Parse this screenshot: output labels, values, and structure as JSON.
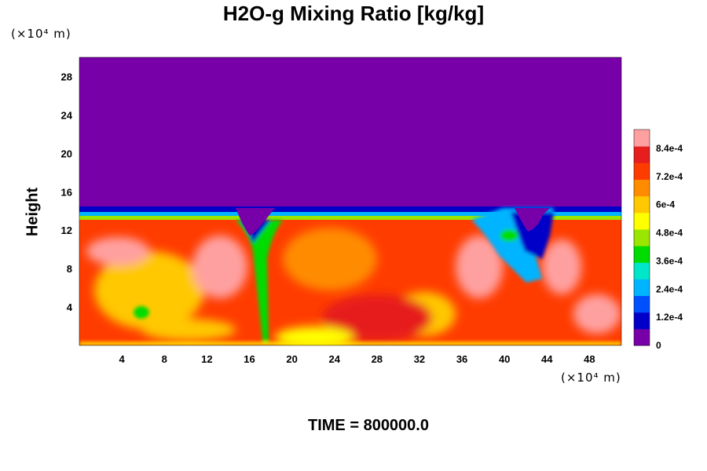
{
  "chart_data": {
    "type": "heatmap",
    "title": "H2O-g Mixing Ratio [kg/kg]",
    "ylabel": "Height",
    "y_unit": "(×10⁴ m)",
    "x_unit": "(×10⁴ m)",
    "x_ticks": [
      4,
      8,
      12,
      16,
      20,
      24,
      28,
      32,
      36,
      40,
      44,
      48
    ],
    "y_ticks": [
      4,
      8,
      12,
      16,
      20,
      24,
      28
    ],
    "xlim": [
      0,
      51
    ],
    "ylim": [
      0,
      30
    ],
    "colorbar": {
      "range": [
        0,
        0.00092
      ],
      "tick_labels": [
        "0",
        "1.2e-4",
        "2.4e-4",
        "3.6e-4",
        "4.8e-4",
        "6e-4",
        "7.2e-4",
        "8.4e-4"
      ],
      "colors": [
        "#7800a8",
        "#0000c8",
        "#0050ff",
        "#00b4ff",
        "#00e6c8",
        "#00dc00",
        "#9ae600",
        "#ffff00",
        "#ffc800",
        "#ff8c00",
        "#ff3c00",
        "#e61e1e",
        "#ffa0a0"
      ]
    },
    "field_description_values": {
      "upper_region_value": 0,
      "moist_layer_top_height": 13.5
    }
  },
  "footer": {
    "time_label": "TIME = 800000.0"
  }
}
